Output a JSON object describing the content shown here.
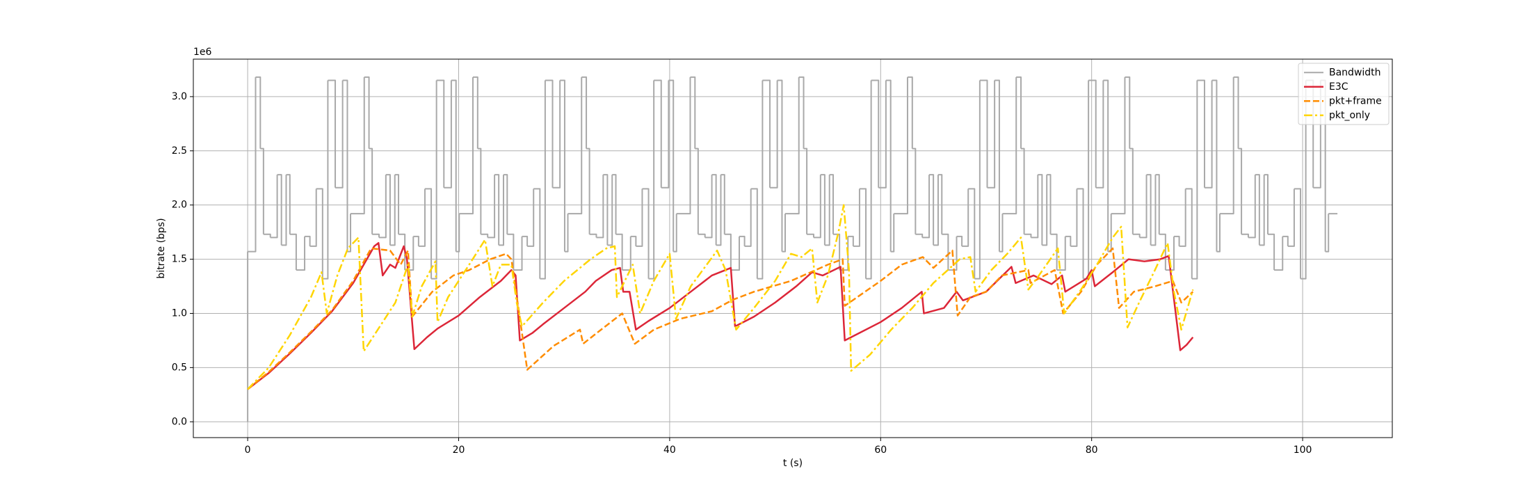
{
  "chart_data": {
    "type": "line",
    "xlabel": "t (s)",
    "ylabel": "bitrate (bps)",
    "y_offset_label": "1e6",
    "xlim": [
      -5.15,
      108.5
    ],
    "ylim": [
      -146000,
      3346000
    ],
    "xticks": [
      0,
      20,
      40,
      60,
      80,
      100
    ],
    "yticks": [
      {
        "value": 0,
        "label": "0.0"
      },
      {
        "value": 500000,
        "label": "0.5"
      },
      {
        "value": 1000000,
        "label": "1.0"
      },
      {
        "value": 1500000,
        "label": "1.5"
      },
      {
        "value": 2000000,
        "label": "2.0"
      },
      {
        "value": 2500000,
        "label": "2.5"
      },
      {
        "value": 3000000,
        "label": "3.0"
      }
    ],
    "grid": true,
    "legend": "upper right",
    "series": [
      {
        "name": "Bandwidth",
        "color": "#a9a9a9",
        "linestyle": "solid",
        "drawstyle": "steps-post",
        "x": [
          0,
          0,
          0.75,
          1.2,
          1.5,
          2.15,
          2.8,
          3.2,
          3.65,
          4.0,
          4.6,
          5.4,
          5.9,
          6.5,
          7.1,
          7.6,
          8.3,
          9.0,
          9.45,
          9.75,
          11.05,
          11.5,
          11.8,
          12.45,
          13.1,
          13.5,
          13.95,
          14.3,
          14.9,
          15.7,
          16.2,
          16.8,
          17.4,
          17.9,
          18.6,
          19.3,
          19.75,
          20.05,
          21.35,
          21.8,
          22.1,
          22.75,
          23.4,
          23.8,
          24.25,
          24.6,
          25.2,
          26.0,
          26.5,
          27.1,
          27.7,
          28.2,
          28.9,
          29.6,
          30.05,
          30.35,
          31.65,
          32.1,
          32.4,
          33.05,
          33.7,
          34.1,
          34.55,
          34.9,
          35.5,
          36.3,
          36.8,
          37.4,
          38.0,
          38.5,
          39.2,
          39.9,
          40.35,
          40.65,
          41.95,
          42.4,
          42.7,
          43.35,
          44.0,
          44.4,
          44.85,
          45.2,
          45.8,
          46.6,
          47.1,
          47.7,
          48.3,
          48.8,
          49.5,
          50.2,
          50.65,
          50.95,
          52.25,
          52.7,
          53.0,
          53.65,
          54.3,
          54.7,
          55.15,
          55.5,
          56.1,
          56.9,
          57.4,
          58.0,
          58.6,
          59.1,
          59.8,
          60.5,
          60.95,
          61.25,
          62.55,
          63.0,
          63.3,
          63.95,
          64.6,
          65.0,
          65.45,
          65.8,
          66.4,
          67.2,
          67.7,
          68.3,
          68.9,
          69.4,
          70.1,
          70.8,
          71.25,
          71.55,
          72.85,
          73.3,
          73.6,
          74.25,
          74.9,
          75.3,
          75.75,
          76.1,
          76.7,
          77.5,
          78.0,
          78.6,
          79.2,
          79.7,
          80.4,
          81.1,
          81.55,
          81.85,
          83.15,
          83.6,
          83.9,
          84.55,
          85.2,
          85.6,
          86.05,
          86.4,
          87.0,
          87.8,
          88.3,
          88.9,
          89.5,
          90.0,
          90.7,
          91.4,
          91.85,
          92.15,
          93.45,
          93.9,
          94.2,
          94.85,
          95.5,
          95.9,
          96.35,
          96.7,
          97.3,
          98.1,
          98.6,
          99.2,
          99.8,
          100.3,
          101.0,
          101.7,
          102.15,
          102.45,
          103.3
        ],
        "values": [
          0,
          1570000,
          3180000,
          2520000,
          1730000,
          1700000,
          2280000,
          1630000,
          2280000,
          1730000,
          1400000,
          1710000,
          1620000,
          2150000,
          1320000,
          3150000,
          2160000,
          3150000,
          1570000,
          1920000,
          3180000,
          2520000,
          1730000,
          1700000,
          2280000,
          1630000,
          2280000,
          1730000,
          1400000,
          1710000,
          1620000,
          2150000,
          1320000,
          3150000,
          2160000,
          3150000,
          1570000,
          1920000,
          3180000,
          2520000,
          1730000,
          1700000,
          2280000,
          1630000,
          2280000,
          1730000,
          1400000,
          1710000,
          1620000,
          2150000,
          1320000,
          3150000,
          2160000,
          3150000,
          1570000,
          1920000,
          3180000,
          2520000,
          1730000,
          1700000,
          2280000,
          1630000,
          2280000,
          1730000,
          1400000,
          1710000,
          1620000,
          2150000,
          1320000,
          3150000,
          2160000,
          3150000,
          1570000,
          1920000,
          3180000,
          2520000,
          1730000,
          1700000,
          2280000,
          1630000,
          2280000,
          1730000,
          1400000,
          1710000,
          1620000,
          2150000,
          1320000,
          3150000,
          2160000,
          3150000,
          1570000,
          1920000,
          3180000,
          2520000,
          1730000,
          1700000,
          2280000,
          1630000,
          2280000,
          1730000,
          1400000,
          1710000,
          1620000,
          2150000,
          1320000,
          3150000,
          2160000,
          3150000,
          1570000,
          1920000,
          3180000,
          2520000,
          1730000,
          1700000,
          2280000,
          1630000,
          2280000,
          1730000,
          1400000,
          1710000,
          1620000,
          2150000,
          1320000,
          3150000,
          2160000,
          3150000,
          1570000,
          1920000,
          3180000,
          2520000,
          1730000,
          1700000,
          2280000,
          1630000,
          2280000,
          1730000,
          1400000,
          1710000,
          1620000,
          2150000,
          1320000,
          3150000,
          2160000,
          3150000,
          1570000,
          1920000,
          3180000,
          2520000,
          1730000,
          1700000,
          2280000,
          1630000,
          2280000,
          1730000,
          1400000,
          1710000,
          1620000,
          2150000,
          1320000,
          3150000,
          2160000,
          3150000,
          1570000,
          1920000,
          3180000,
          2520000,
          1730000,
          1700000,
          2280000,
          1630000,
          2280000,
          1730000,
          1400000,
          1710000,
          1620000,
          2150000,
          1320000,
          3150000,
          2160000,
          3150000,
          1570000,
          1920000,
          1920000
        ]
      },
      {
        "name": "E3C",
        "color": "#dc2638",
        "linestyle": "solid",
        "x": [
          0,
          2,
          4,
          6,
          8,
          10,
          11,
          12,
          12.4,
          12.8,
          13.5,
          14,
          14.8,
          15.1,
          15.8,
          17,
          18,
          20,
          22,
          24,
          25,
          25.4,
          25.8,
          27,
          28,
          30,
          32,
          33,
          34.5,
          35.3,
          35.6,
          36.2,
          36.8,
          38,
          40,
          42,
          44,
          45.8,
          46.2,
          48,
          50,
          52,
          53.5,
          54.5,
          56.2,
          56.6,
          58,
          60,
          62,
          63.9,
          64.1,
          66,
          67.2,
          67.8,
          70,
          72.4,
          72.8,
          74.5,
          76.2,
          77.2,
          77.5,
          79.5,
          80,
          80.3,
          82,
          83.5,
          85,
          86.5,
          87.3,
          88.4,
          89,
          89.6
        ],
        "values": [
          300000,
          450000,
          630000,
          820000,
          1020000,
          1280000,
          1450000,
          1620000,
          1650000,
          1350000,
          1450000,
          1420000,
          1620000,
          1500000,
          670000,
          780000,
          860000,
          980000,
          1150000,
          1300000,
          1400000,
          1350000,
          750000,
          820000,
          900000,
          1050000,
          1200000,
          1300000,
          1400000,
          1420000,
          1200000,
          1200000,
          850000,
          930000,
          1050000,
          1200000,
          1350000,
          1420000,
          880000,
          970000,
          1100000,
          1250000,
          1380000,
          1350000,
          1430000,
          750000,
          820000,
          920000,
          1050000,
          1200000,
          1000000,
          1050000,
          1200000,
          1120000,
          1200000,
          1430000,
          1280000,
          1350000,
          1270000,
          1350000,
          1200000,
          1320000,
          1400000,
          1250000,
          1380000,
          1500000,
          1480000,
          1500000,
          1530000,
          660000,
          710000,
          780000
        ]
      },
      {
        "name": "pkt+frame",
        "color": "#ff8c00",
        "linestyle": "dashed",
        "x": [
          0,
          2,
          4,
          6,
          8,
          10,
          11.7,
          13.5,
          14.5,
          15.2,
          15.6,
          17.5,
          19.5,
          21,
          23,
          24.5,
          25,
          26.5,
          29,
          31.5,
          31.8,
          33.5,
          35.5,
          36.7,
          38.5,
          41,
          44,
          45.5,
          46.1,
          48,
          51.5,
          55,
          56.4,
          56.6,
          60,
          62,
          64,
          65,
          66.8,
          67.3,
          68.5,
          70,
          71.5,
          74,
          74.2,
          76.5,
          77.3,
          79,
          80.5,
          82,
          82.6,
          84,
          86,
          87.7,
          88.5,
          89.6
        ],
        "values": [
          300000,
          460000,
          640000,
          830000,
          1030000,
          1300000,
          1600000,
          1580000,
          1450000,
          1580000,
          970000,
          1200000,
          1350000,
          1400000,
          1500000,
          1550000,
          1500000,
          480000,
          700000,
          850000,
          720000,
          850000,
          1000000,
          720000,
          850000,
          950000,
          1020000,
          1100000,
          1130000,
          1200000,
          1300000,
          1450000,
          1500000,
          1070000,
          1300000,
          1450000,
          1520000,
          1420000,
          1580000,
          980000,
          1150000,
          1200000,
          1350000,
          1400000,
          1280000,
          1400000,
          1000000,
          1200000,
          1450000,
          1600000,
          1050000,
          1200000,
          1250000,
          1300000,
          1100000,
          1200000
        ]
      },
      {
        "name": "pkt_only",
        "color": "#ffd500",
        "linestyle": "dashdot",
        "x": [
          0,
          2,
          4,
          6,
          7,
          7.5,
          8.5,
          9.5,
          10.5,
          11,
          12,
          14,
          15.2,
          15.6,
          16.5,
          17.8,
          18,
          19,
          21,
          22.5,
          23.2,
          24,
          25,
          25.5,
          26,
          28,
          30,
          32.5,
          34,
          34.8,
          35,
          36.5,
          37.2,
          38.5,
          40,
          40.6,
          42,
          44.5,
          45.3,
          46.3,
          48,
          50,
          51.5,
          52.5,
          53.5,
          54,
          55,
          56,
          56.5,
          57,
          57.2,
          59,
          61,
          63,
          65,
          67.5,
          68.5,
          69,
          70.5,
          72,
          73.3,
          74,
          75,
          76.8,
          77.4,
          79,
          80.5,
          82,
          82.8,
          83.4,
          84.5,
          86,
          87.2,
          87.8,
          88.5,
          89.6
        ],
        "values": [
          300000,
          500000,
          800000,
          1150000,
          1380000,
          1000000,
          1350000,
          1600000,
          1700000,
          650000,
          800000,
          1100000,
          1450000,
          970000,
          1250000,
          1480000,
          920000,
          1150000,
          1450000,
          1680000,
          1250000,
          1450000,
          1450000,
          1100000,
          880000,
          1100000,
          1300000,
          1500000,
          1600000,
          1620000,
          1150000,
          1450000,
          1000000,
          1300000,
          1550000,
          950000,
          1250000,
          1580000,
          1400000,
          850000,
          1050000,
          1300000,
          1550000,
          1520000,
          1600000,
          1100000,
          1350000,
          1750000,
          2000000,
          1400000,
          470000,
          620000,
          850000,
          1050000,
          1280000,
          1500000,
          1520000,
          1200000,
          1400000,
          1550000,
          1700000,
          1220000,
          1350000,
          1600000,
          1000000,
          1220000,
          1450000,
          1700000,
          1800000,
          870000,
          1100000,
          1400000,
          1650000,
          1200000,
          850000,
          1220000
        ]
      }
    ]
  }
}
